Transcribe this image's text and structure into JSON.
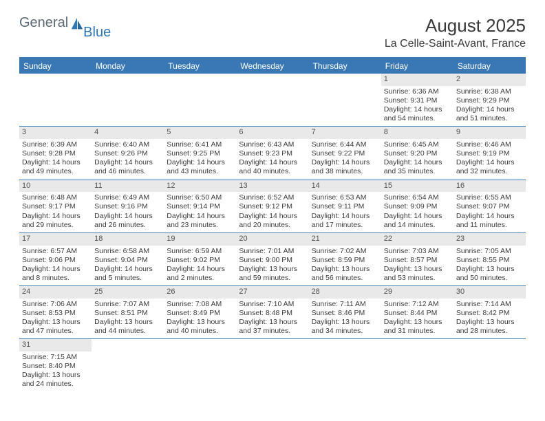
{
  "logo": {
    "part1": "General",
    "part2": "Blue",
    "icon_color": "#2f78b8"
  },
  "title": "August 2025",
  "subtitle": "La Celle-Saint-Avant, France",
  "colors": {
    "header_bg": "#3a78b5",
    "header_text": "#ffffff",
    "daynum_bg": "#e9e9e9",
    "rule": "#3a78b5",
    "text": "#3a3a3a"
  },
  "day_headers": [
    "Sunday",
    "Monday",
    "Tuesday",
    "Wednesday",
    "Thursday",
    "Friday",
    "Saturday"
  ],
  "weeks": [
    [
      null,
      null,
      null,
      null,
      null,
      {
        "n": "1",
        "sr": "Sunrise: 6:36 AM",
        "ss": "Sunset: 9:31 PM",
        "dl": "Daylight: 14 hours and 54 minutes."
      },
      {
        "n": "2",
        "sr": "Sunrise: 6:38 AM",
        "ss": "Sunset: 9:29 PM",
        "dl": "Daylight: 14 hours and 51 minutes."
      }
    ],
    [
      {
        "n": "3",
        "sr": "Sunrise: 6:39 AM",
        "ss": "Sunset: 9:28 PM",
        "dl": "Daylight: 14 hours and 49 minutes."
      },
      {
        "n": "4",
        "sr": "Sunrise: 6:40 AM",
        "ss": "Sunset: 9:26 PM",
        "dl": "Daylight: 14 hours and 46 minutes."
      },
      {
        "n": "5",
        "sr": "Sunrise: 6:41 AM",
        "ss": "Sunset: 9:25 PM",
        "dl": "Daylight: 14 hours and 43 minutes."
      },
      {
        "n": "6",
        "sr": "Sunrise: 6:43 AM",
        "ss": "Sunset: 9:23 PM",
        "dl": "Daylight: 14 hours and 40 minutes."
      },
      {
        "n": "7",
        "sr": "Sunrise: 6:44 AM",
        "ss": "Sunset: 9:22 PM",
        "dl": "Daylight: 14 hours and 38 minutes."
      },
      {
        "n": "8",
        "sr": "Sunrise: 6:45 AM",
        "ss": "Sunset: 9:20 PM",
        "dl": "Daylight: 14 hours and 35 minutes."
      },
      {
        "n": "9",
        "sr": "Sunrise: 6:46 AM",
        "ss": "Sunset: 9:19 PM",
        "dl": "Daylight: 14 hours and 32 minutes."
      }
    ],
    [
      {
        "n": "10",
        "sr": "Sunrise: 6:48 AM",
        "ss": "Sunset: 9:17 PM",
        "dl": "Daylight: 14 hours and 29 minutes."
      },
      {
        "n": "11",
        "sr": "Sunrise: 6:49 AM",
        "ss": "Sunset: 9:16 PM",
        "dl": "Daylight: 14 hours and 26 minutes."
      },
      {
        "n": "12",
        "sr": "Sunrise: 6:50 AM",
        "ss": "Sunset: 9:14 PM",
        "dl": "Daylight: 14 hours and 23 minutes."
      },
      {
        "n": "13",
        "sr": "Sunrise: 6:52 AM",
        "ss": "Sunset: 9:12 PM",
        "dl": "Daylight: 14 hours and 20 minutes."
      },
      {
        "n": "14",
        "sr": "Sunrise: 6:53 AM",
        "ss": "Sunset: 9:11 PM",
        "dl": "Daylight: 14 hours and 17 minutes."
      },
      {
        "n": "15",
        "sr": "Sunrise: 6:54 AM",
        "ss": "Sunset: 9:09 PM",
        "dl": "Daylight: 14 hours and 14 minutes."
      },
      {
        "n": "16",
        "sr": "Sunrise: 6:55 AM",
        "ss": "Sunset: 9:07 PM",
        "dl": "Daylight: 14 hours and 11 minutes."
      }
    ],
    [
      {
        "n": "17",
        "sr": "Sunrise: 6:57 AM",
        "ss": "Sunset: 9:06 PM",
        "dl": "Daylight: 14 hours and 8 minutes."
      },
      {
        "n": "18",
        "sr": "Sunrise: 6:58 AM",
        "ss": "Sunset: 9:04 PM",
        "dl": "Daylight: 14 hours and 5 minutes."
      },
      {
        "n": "19",
        "sr": "Sunrise: 6:59 AM",
        "ss": "Sunset: 9:02 PM",
        "dl": "Daylight: 14 hours and 2 minutes."
      },
      {
        "n": "20",
        "sr": "Sunrise: 7:01 AM",
        "ss": "Sunset: 9:00 PM",
        "dl": "Daylight: 13 hours and 59 minutes."
      },
      {
        "n": "21",
        "sr": "Sunrise: 7:02 AM",
        "ss": "Sunset: 8:59 PM",
        "dl": "Daylight: 13 hours and 56 minutes."
      },
      {
        "n": "22",
        "sr": "Sunrise: 7:03 AM",
        "ss": "Sunset: 8:57 PM",
        "dl": "Daylight: 13 hours and 53 minutes."
      },
      {
        "n": "23",
        "sr": "Sunrise: 7:05 AM",
        "ss": "Sunset: 8:55 PM",
        "dl": "Daylight: 13 hours and 50 minutes."
      }
    ],
    [
      {
        "n": "24",
        "sr": "Sunrise: 7:06 AM",
        "ss": "Sunset: 8:53 PM",
        "dl": "Daylight: 13 hours and 47 minutes."
      },
      {
        "n": "25",
        "sr": "Sunrise: 7:07 AM",
        "ss": "Sunset: 8:51 PM",
        "dl": "Daylight: 13 hours and 44 minutes."
      },
      {
        "n": "26",
        "sr": "Sunrise: 7:08 AM",
        "ss": "Sunset: 8:49 PM",
        "dl": "Daylight: 13 hours and 40 minutes."
      },
      {
        "n": "27",
        "sr": "Sunrise: 7:10 AM",
        "ss": "Sunset: 8:48 PM",
        "dl": "Daylight: 13 hours and 37 minutes."
      },
      {
        "n": "28",
        "sr": "Sunrise: 7:11 AM",
        "ss": "Sunset: 8:46 PM",
        "dl": "Daylight: 13 hours and 34 minutes."
      },
      {
        "n": "29",
        "sr": "Sunrise: 7:12 AM",
        "ss": "Sunset: 8:44 PM",
        "dl": "Daylight: 13 hours and 31 minutes."
      },
      {
        "n": "30",
        "sr": "Sunrise: 7:14 AM",
        "ss": "Sunset: 8:42 PM",
        "dl": "Daylight: 13 hours and 28 minutes."
      }
    ],
    [
      {
        "n": "31",
        "sr": "Sunrise: 7:15 AM",
        "ss": "Sunset: 8:40 PM",
        "dl": "Daylight: 13 hours and 24 minutes."
      },
      null,
      null,
      null,
      null,
      null,
      null
    ]
  ]
}
